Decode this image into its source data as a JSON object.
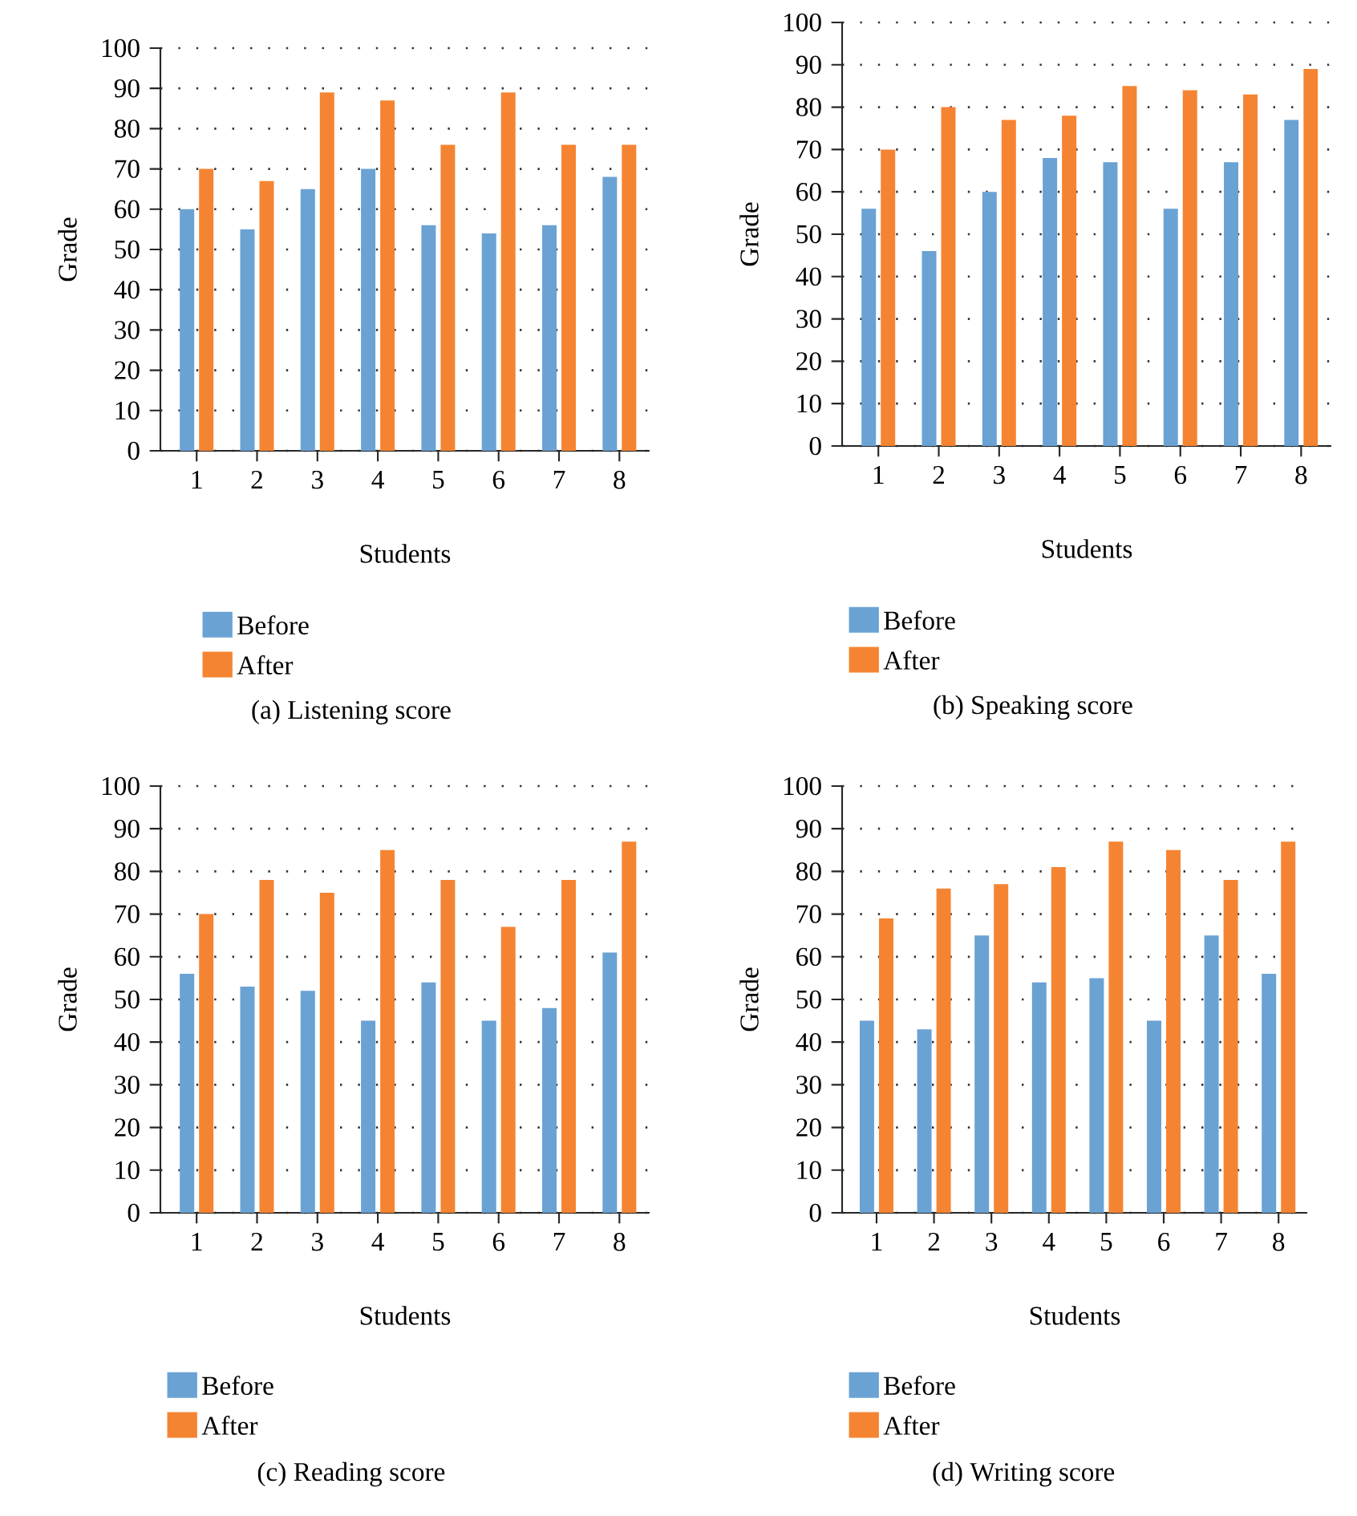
{
  "chart_data": [
    {
      "type": "bar",
      "title": "(a) Listening score",
      "xlabel": "Students",
      "ylabel": "Grade",
      "categories": [
        "1",
        "2",
        "3",
        "4",
        "5",
        "6",
        "7",
        "8"
      ],
      "series": [
        {
          "name": "Before",
          "color": "#6aa2d4",
          "values": [
            60,
            55,
            65,
            70,
            56,
            54,
            56,
            68
          ]
        },
        {
          "name": "After",
          "color": "#f58432",
          "values": [
            70,
            67,
            89,
            87,
            76,
            89,
            76,
            76
          ]
        }
      ],
      "ylim": [
        0,
        100
      ],
      "yticks": [
        0,
        10,
        20,
        30,
        40,
        50,
        60,
        70,
        80,
        90,
        100
      ],
      "grid": "y",
      "legend": "bottom left"
    },
    {
      "type": "bar",
      "title": "(b) Speaking score",
      "xlabel": "Students",
      "ylabel": "Grade",
      "categories": [
        "1",
        "2",
        "3",
        "4",
        "5",
        "6",
        "7",
        "8"
      ],
      "series": [
        {
          "name": "Before",
          "color": "#6aa2d4",
          "values": [
            56,
            46,
            60,
            68,
            67,
            56,
            67,
            77
          ]
        },
        {
          "name": "After",
          "color": "#f58432",
          "values": [
            70,
            80,
            77,
            78,
            85,
            84,
            83,
            89
          ]
        }
      ],
      "ylim": [
        0,
        100
      ],
      "yticks": [
        0,
        10,
        20,
        30,
        40,
        50,
        60,
        70,
        80,
        90,
        100
      ],
      "grid": "y",
      "legend": "bottom left"
    },
    {
      "type": "bar",
      "title": "(c) Reading score",
      "xlabel": "Students",
      "ylabel": "Grade",
      "categories": [
        "1",
        "2",
        "3",
        "4",
        "5",
        "6",
        "7",
        "8"
      ],
      "series": [
        {
          "name": "Before",
          "color": "#6aa2d4",
          "values": [
            56,
            53,
            52,
            45,
            54,
            45,
            48,
            61
          ]
        },
        {
          "name": "After",
          "color": "#f58432",
          "values": [
            70,
            78,
            75,
            85,
            78,
            67,
            78,
            87
          ]
        }
      ],
      "ylim": [
        0,
        100
      ],
      "yticks": [
        0,
        10,
        20,
        30,
        40,
        50,
        60,
        70,
        80,
        90,
        100
      ],
      "grid": "y",
      "legend": "bottom left"
    },
    {
      "type": "bar",
      "title": "(d) Writing score",
      "xlabel": "Students",
      "ylabel": "Grade",
      "categories": [
        "1",
        "2",
        "3",
        "4",
        "5",
        "6",
        "7",
        "8"
      ],
      "series": [
        {
          "name": "Before",
          "color": "#6aa2d4",
          "values": [
            45,
            43,
            65,
            54,
            55,
            45,
            65,
            56
          ]
        },
        {
          "name": "After",
          "color": "#f58432",
          "values": [
            69,
            76,
            77,
            81,
            87,
            85,
            78,
            87
          ]
        }
      ],
      "ylim": [
        0,
        100
      ],
      "yticks": [
        0,
        10,
        20,
        30,
        40,
        50,
        60,
        70,
        80,
        90,
        100
      ],
      "grid": "y",
      "legend": "bottom left"
    }
  ]
}
